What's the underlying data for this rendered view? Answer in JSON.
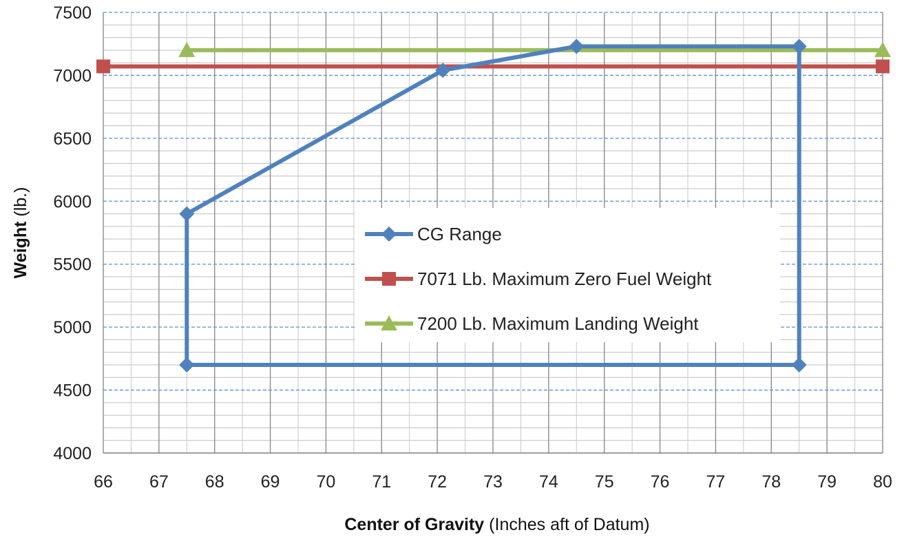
{
  "chart_data": {
    "type": "line",
    "xlabel_bold": "Center of Gravity",
    "xlabel_rest": "(Inches aft of Datum)",
    "ylabel_bold": "Weight",
    "ylabel_rest": "(lb.)",
    "xlim": [
      66,
      80
    ],
    "ylim": [
      4000,
      7500
    ],
    "x_ticks": [
      "66",
      "67",
      "68",
      "69",
      "70",
      "71",
      "72",
      "73",
      "74",
      "75",
      "76",
      "77",
      "78",
      "79",
      "80"
    ],
    "y_ticks": [
      "4000",
      "4500",
      "5000",
      "5500",
      "6000",
      "6500",
      "7000",
      "7500"
    ],
    "x_minor_step": 0.5,
    "y_minor_step": 100,
    "grid": true,
    "legend_position": "center-right",
    "series": [
      {
        "name": "CG Range",
        "color": "#4F81BD",
        "marker": "diamond",
        "points": [
          [
            67.5,
            4700
          ],
          [
            67.5,
            5900
          ],
          [
            72.1,
            7040
          ],
          [
            74.5,
            7230
          ],
          [
            78.5,
            7230
          ],
          [
            78.5,
            4700
          ],
          [
            67.5,
            4700
          ]
        ]
      },
      {
        "name": "7071 Lb. Maximum Zero Fuel Weight",
        "color": "#C0504D",
        "marker": "square",
        "points": [
          [
            66,
            7071
          ],
          [
            80,
            7071
          ]
        ]
      },
      {
        "name": "7200 Lb. Maximum Landing Weight",
        "color": "#9BBB59",
        "marker": "triangle",
        "points": [
          [
            67.5,
            7200
          ],
          [
            80,
            7200
          ]
        ]
      }
    ]
  }
}
